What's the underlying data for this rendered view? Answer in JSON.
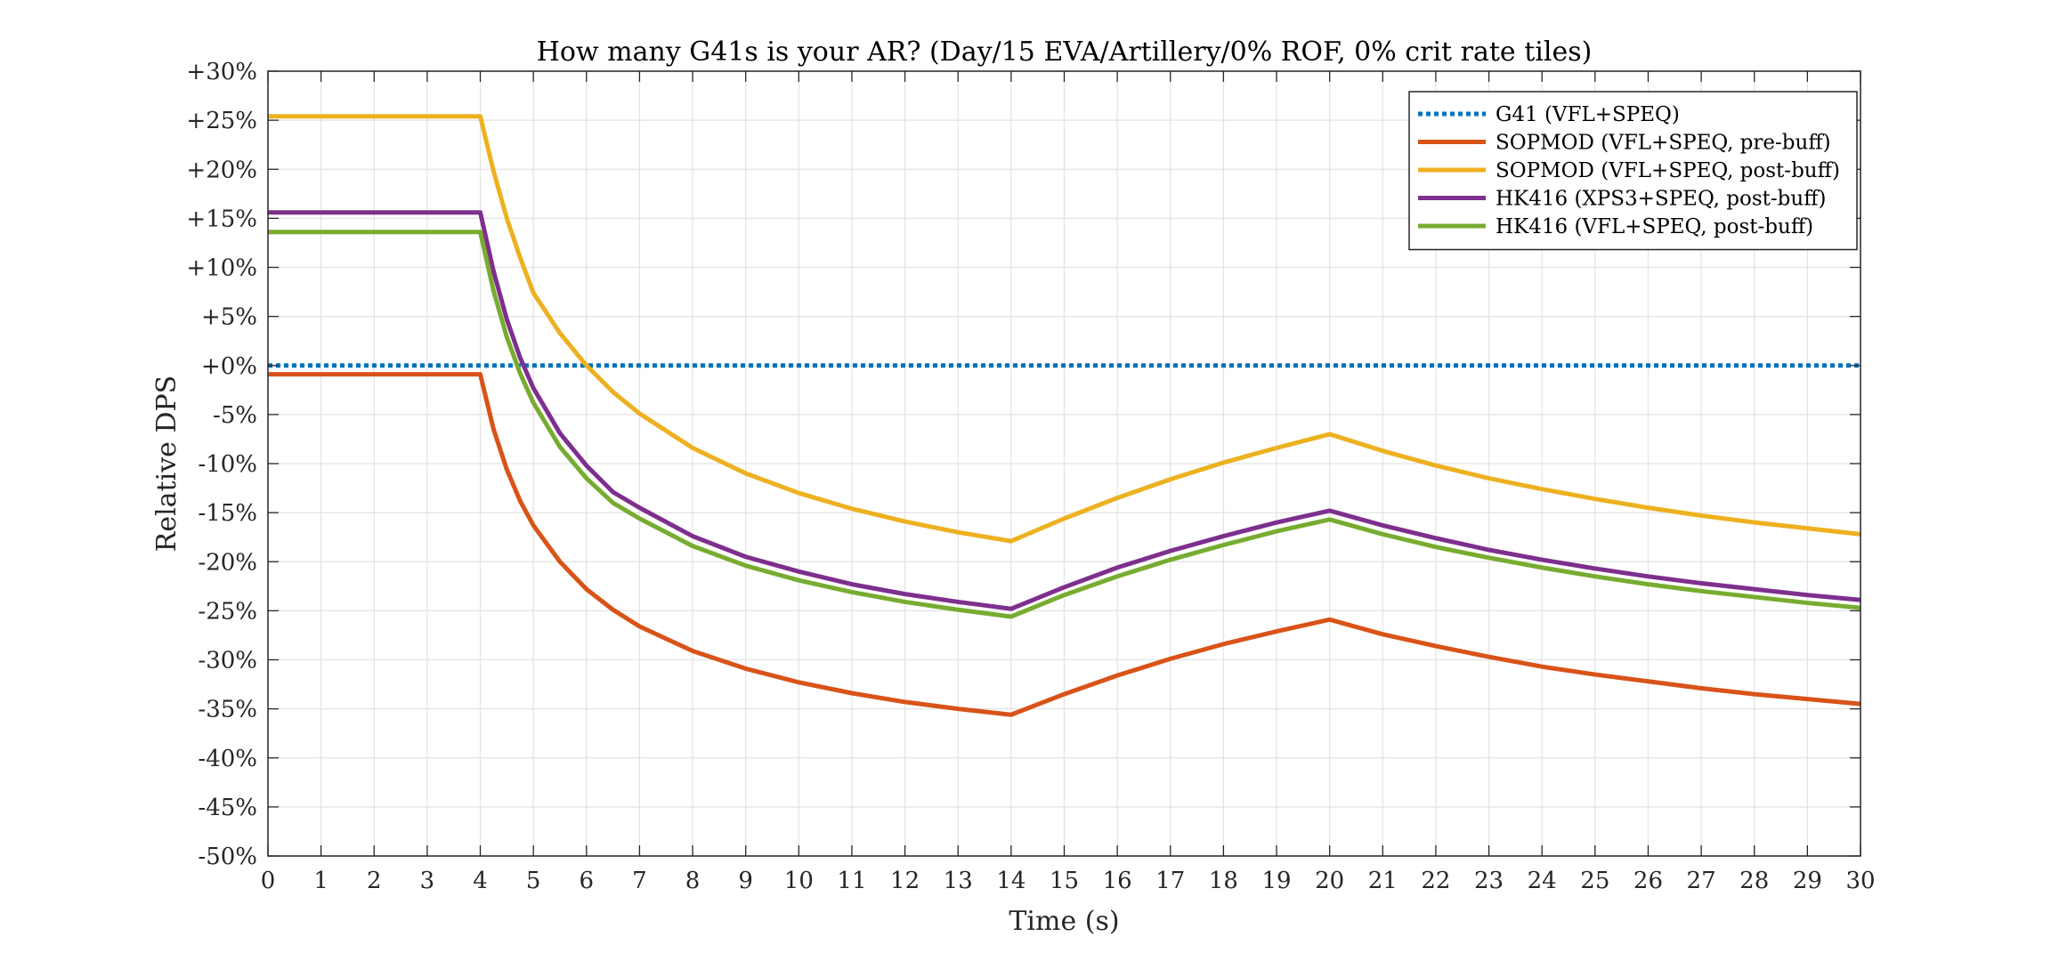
{
  "chart_data": {
    "type": "line",
    "title": "How many G41s is your AR? (Day/15 EVA/Artillery/0% ROF, 0% crit rate tiles)",
    "xlabel": "Time (s)",
    "ylabel": "Relative DPS",
    "xlim": [
      0,
      30
    ],
    "ylim": [
      -50,
      30
    ],
    "x_ticks": [
      "0",
      "1",
      "2",
      "3",
      "4",
      "5",
      "6",
      "7",
      "8",
      "9",
      "10",
      "11",
      "12",
      "13",
      "14",
      "15",
      "16",
      "17",
      "18",
      "19",
      "20",
      "21",
      "22",
      "23",
      "24",
      "25",
      "26",
      "27",
      "28",
      "29",
      "30"
    ],
    "y_ticks": [
      "+30%",
      "+25%",
      "+20%",
      "+15%",
      "+10%",
      "+5%",
      "+0%",
      "-5%",
      "-10%",
      "-15%",
      "-20%",
      "-25%",
      "-30%",
      "-35%",
      "-40%",
      "-45%",
      "-50%"
    ],
    "grid": true,
    "legend_position": "top-right",
    "x": [
      0,
      1,
      2,
      3,
      4,
      4.25,
      4.5,
      4.75,
      5,
      5.5,
      6,
      6.5,
      7,
      8,
      9,
      10,
      11,
      12,
      13,
      14,
      15,
      16,
      17,
      18,
      19,
      20,
      21,
      22,
      23,
      24,
      25,
      26,
      27,
      28,
      29,
      30
    ],
    "series": [
      {
        "name": "G41 (VFL+SPEQ)",
        "color": "#0072BD",
        "style": "dotted",
        "values": [
          0,
          0,
          0,
          0,
          0,
          0,
          0,
          0,
          0,
          0,
          0,
          0,
          0,
          0,
          0,
          0,
          0,
          0,
          0,
          0,
          0,
          0,
          0,
          0,
          0,
          0,
          0,
          0,
          0,
          0,
          0,
          0,
          0,
          0,
          0,
          0
        ]
      },
      {
        "name": "SOPMOD (VFL+SPEQ, pre-buff)",
        "color": "#D95319",
        "style": "solid",
        "values": [
          -0.9,
          -0.9,
          -0.9,
          -0.9,
          -0.9,
          -6.5,
          -10.6,
          -13.8,
          -16.3,
          -20.0,
          -22.8,
          -24.9,
          -26.6,
          -29.1,
          -30.9,
          -32.3,
          -33.4,
          -34.3,
          -35.0,
          -35.6,
          -33.5,
          -31.6,
          -29.9,
          -28.4,
          -27.1,
          -25.9,
          -27.4,
          -28.6,
          -29.7,
          -30.7,
          -31.5,
          -32.2,
          -32.9,
          -33.5,
          -34.0,
          -34.5
        ]
      },
      {
        "name": "SOPMOD (VFL+SPEQ, post-buff)",
        "color": "#EDB120",
        "style": "solid",
        "values": [
          25.4,
          25.4,
          25.4,
          25.4,
          25.4,
          19.8,
          15.0,
          11.0,
          7.4,
          3.3,
          0.0,
          -2.7,
          -4.9,
          -8.4,
          -11.0,
          -13.0,
          -14.6,
          -15.9,
          -17.0,
          -17.9,
          -15.6,
          -13.5,
          -11.6,
          -9.9,
          -8.4,
          -7.0,
          -8.7,
          -10.2,
          -11.5,
          -12.6,
          -13.6,
          -14.5,
          -15.3,
          -16.0,
          -16.6,
          -17.2
        ]
      },
      {
        "name": "HK416 (XPS3+SPEQ, post-buff)",
        "color": "#7E2F8E",
        "style": "solid",
        "values": [
          15.6,
          15.6,
          15.6,
          15.6,
          15.6,
          9.6,
          4.7,
          0.8,
          -2.3,
          -6.9,
          -10.2,
          -12.9,
          -14.5,
          -17.4,
          -19.5,
          -21.0,
          -22.3,
          -23.3,
          -24.1,
          -24.8,
          -22.6,
          -20.6,
          -18.9,
          -17.4,
          -16.0,
          -14.8,
          -16.3,
          -17.6,
          -18.8,
          -19.8,
          -20.7,
          -21.5,
          -22.2,
          -22.8,
          -23.4,
          -23.9
        ]
      },
      {
        "name": "HK416 (VFL+SPEQ, post-buff)",
        "color": "#77AC30",
        "style": "solid",
        "values": [
          13.6,
          13.6,
          13.6,
          13.6,
          13.6,
          7.6,
          2.9,
          -0.8,
          -3.8,
          -8.3,
          -11.5,
          -14.0,
          -15.6,
          -18.4,
          -20.4,
          -21.9,
          -23.1,
          -24.1,
          -24.9,
          -25.6,
          -23.4,
          -21.5,
          -19.8,
          -18.3,
          -16.9,
          -15.7,
          -17.2,
          -18.5,
          -19.6,
          -20.6,
          -21.5,
          -22.3,
          -23.0,
          -23.6,
          -24.2,
          -24.7
        ]
      }
    ]
  }
}
